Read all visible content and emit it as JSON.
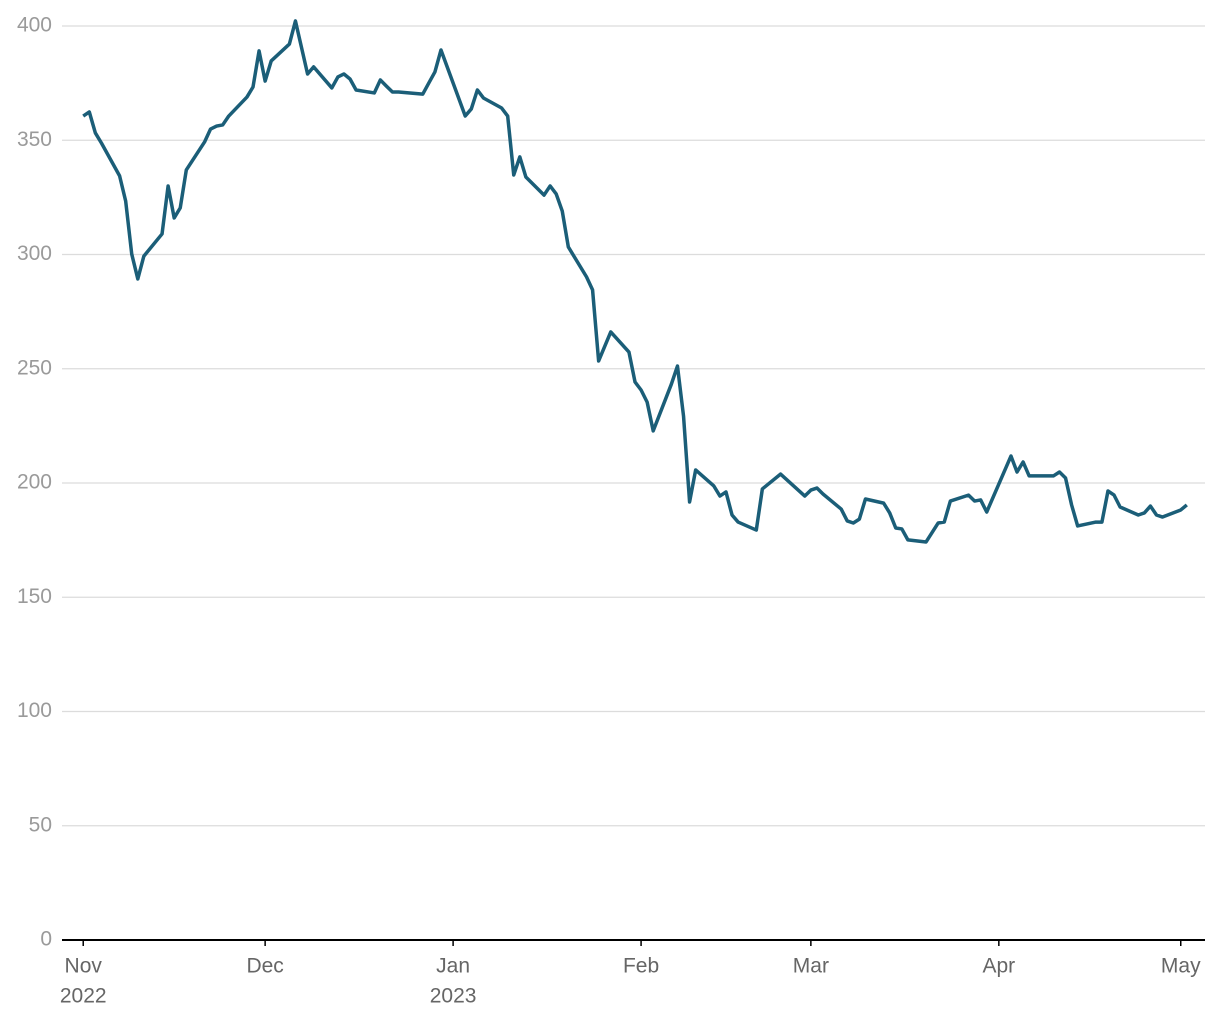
{
  "chart_data": {
    "type": "line",
    "x": [
      0,
      1,
      2,
      3,
      6,
      7,
      8,
      9,
      10,
      13,
      14,
      15,
      16,
      17,
      20,
      21,
      22,
      23,
      24,
      27,
      28,
      29,
      30,
      31,
      34,
      35,
      37,
      38,
      41,
      42,
      43,
      44,
      45,
      48,
      49,
      50,
      51,
      52,
      56,
      57,
      58,
      59,
      63,
      64,
      65,
      66,
      69,
      70,
      71,
      72,
      73,
      76,
      77,
      78,
      79,
      80,
      83,
      84,
      85,
      87,
      90,
      91,
      92,
      93,
      94,
      97,
      98,
      99,
      100,
      101,
      104,
      105,
      106,
      107,
      108,
      111,
      112,
      115,
      119,
      120,
      121,
      122,
      125,
      126,
      127,
      128,
      129,
      132,
      133,
      134,
      135,
      136,
      139,
      141,
      142,
      143,
      146,
      147,
      148,
      149,
      153,
      154,
      155,
      156,
      160,
      161,
      162,
      163,
      164,
      167,
      168,
      169,
      170,
      171,
      174,
      175,
      176,
      177,
      178,
      181,
      182
    ],
    "series": [
      {
        "color": "#1b5e78",
        "values": [
          360.6,
          362.4,
          353.2,
          348.8,
          334.4,
          323.4,
          300.2,
          289.3,
          299.3,
          309.0,
          330.0,
          316.0,
          320.4,
          337.0,
          349.2,
          354.9,
          356.2,
          356.7,
          360.6,
          368.9,
          373.3,
          389.1,
          375.9,
          384.7,
          392.1,
          402.2,
          379.0,
          382.1,
          372.9,
          377.7,
          379.0,
          376.8,
          372.0,
          370.7,
          376.4,
          373.7,
          371.1,
          371.1,
          370.2,
          375.1,
          379.9,
          389.5,
          360.6,
          363.7,
          372.0,
          368.5,
          364.1,
          360.6,
          334.8,
          342.7,
          333.9,
          326.0,
          330.0,
          326.5,
          319.0,
          303.3,
          290.2,
          284.5,
          253.4,
          266.1,
          257.3,
          244.2,
          240.7,
          235.4,
          222.8,
          243.3,
          251.2,
          229.3,
          191.7,
          205.7,
          198.7,
          194.3,
          196.1,
          186.0,
          182.9,
          179.4,
          197.4,
          203.9,
          194.3,
          196.9,
          197.8,
          195.2,
          188.6,
          183.4,
          182.5,
          184.2,
          193.0,
          191.2,
          186.9,
          180.3,
          179.9,
          175.1,
          174.2,
          182.5,
          182.9,
          192.1,
          194.7,
          192.1,
          192.6,
          187.3,
          211.8,
          204.8,
          209.2,
          203.1,
          203.1,
          204.8,
          202.2,
          190.4,
          181.2,
          182.9,
          182.9,
          196.5,
          194.7,
          189.5,
          186.0,
          186.9,
          189.9,
          186.0,
          185.1,
          188.2,
          190.4
        ]
      }
    ],
    "xlim": [
      -3.5,
      185
    ],
    "xticks": [
      {
        "value": 0,
        "label": "Nov",
        "year": "2022"
      },
      {
        "value": 30,
        "label": "Dec"
      },
      {
        "value": 61,
        "label": "Jan",
        "year": "2023"
      },
      {
        "value": 92,
        "label": "Feb"
      },
      {
        "value": 120,
        "label": "Mar"
      },
      {
        "value": 151,
        "label": "Apr"
      },
      {
        "value": 181,
        "label": "May"
      }
    ],
    "ylim": [
      0,
      400
    ],
    "yticks": [
      0,
      50,
      100,
      150,
      200,
      250,
      300,
      350,
      400
    ],
    "grid": true
  }
}
